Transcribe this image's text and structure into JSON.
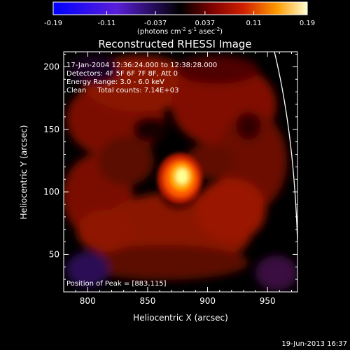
{
  "chart_data": {
    "type": "heatmap",
    "title": "Reconstructed RHESSI Image",
    "xlabel": "Heliocentric X (arcsec)",
    "ylabel": "Heliocentric Y (arcsec)",
    "xlim": [
      780,
      975
    ],
    "ylim": [
      20,
      212
    ],
    "xticks": [
      "800",
      "850",
      "900",
      "950"
    ],
    "xtick_values": [
      800,
      850,
      900,
      950
    ],
    "yticks": [
      "50",
      "100",
      "150",
      "200"
    ],
    "ytick_values": [
      50,
      100,
      150,
      200
    ],
    "colorbar": {
      "min": -0.19,
      "max": 0.19,
      "tick_values": [
        -0.19,
        -0.11,
        -0.037,
        0.037,
        0.11,
        0.19
      ],
      "tick_labels": [
        "-0.19",
        "-0.11",
        "-0.037",
        "0.037",
        "0.11",
        "0.19"
      ],
      "units_prefix": "(photons cm",
      "units_sup1": "-2",
      "units_mid1": " s",
      "units_sup2": "-1",
      "units_mid2": " asec",
      "units_sup3": "-2",
      "units_suffix": ")"
    },
    "annotations": [
      "17-Jan-2004 12:36:24.000 to 12:38:28.000",
      "Detectors: 4F 5F 6F 7F 8F, Att 0",
      "Energy Range: 3.0 - 6.0 keV",
      "Clean     Total counts: 7.14E+03"
    ],
    "peak_label": "Position of Peak = [883,115]",
    "peak": {
      "x": 883,
      "y": 115
    },
    "limb_color": "#ffffff",
    "colors": {
      "background": "#000000",
      "text": "#ffffff"
    }
  },
  "footer": {
    "timestamp": "19-Jun-2013 16:37"
  }
}
